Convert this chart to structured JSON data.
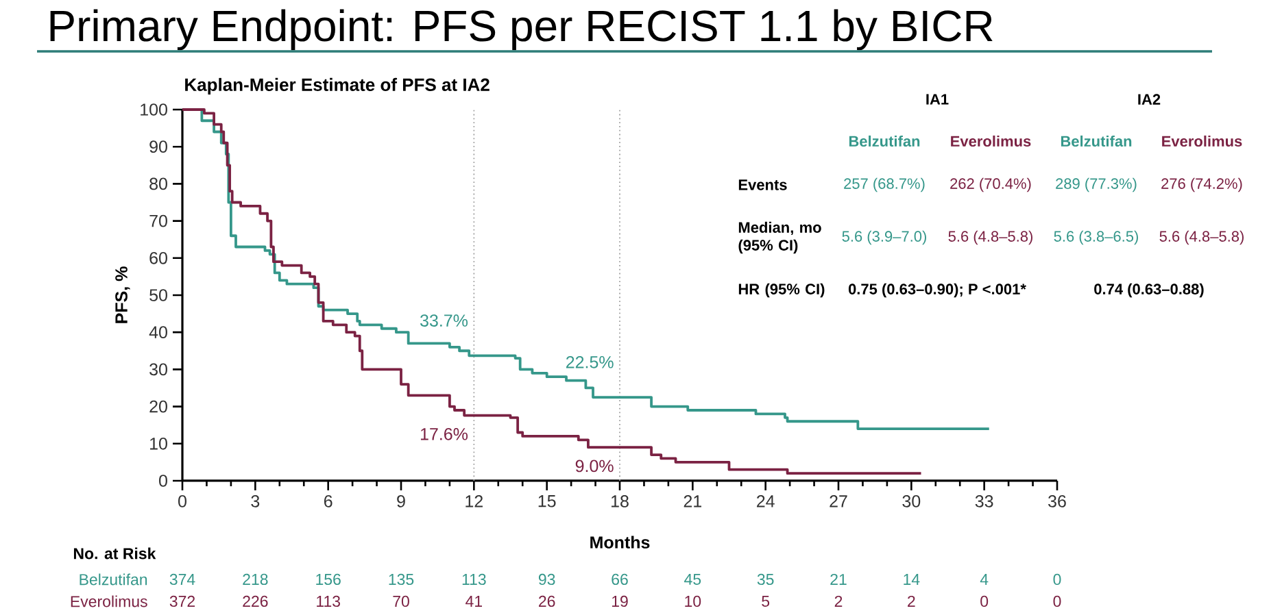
{
  "chart_data": {
    "type": "step",
    "title": "Primary Endpoint: PFS per RECIST 1.1 by BICR",
    "subtitle": "Kaplan-Meier Estimate of PFS at IA2",
    "xlabel": "Months",
    "ylabel": "PFS, %",
    "xlim": [
      0,
      36
    ],
    "ylim": [
      0,
      100
    ],
    "xticks": [
      0,
      {
        "value": 1,
        "label": null
      },
      {
        "value": 2,
        "label": null
      },
      3,
      {
        "value": 4,
        "label": null
      },
      {
        "value": 5,
        "label": null
      },
      6,
      {
        "value": 7,
        "label": null
      },
      {
        "value": 8,
        "label": null
      },
      9,
      {
        "value": 10,
        "label": null
      },
      {
        "value": 11,
        "label": null
      },
      12,
      {
        "value": 13,
        "label": null
      },
      {
        "value": 14,
        "label": null
      },
      15,
      {
        "value": 16,
        "label": null
      },
      {
        "value": 17,
        "label": null
      },
      18,
      {
        "value": 19,
        "label": null
      },
      {
        "value": 20,
        "label": null
      },
      21,
      {
        "value": 22,
        "label": null
      },
      {
        "value": 23,
        "label": null
      },
      24,
      {
        "value": 25,
        "label": null
      },
      {
        "value": 26,
        "label": null
      },
      27,
      {
        "value": 28,
        "label": null
      },
      {
        "value": 29,
        "label": null
      },
      30,
      {
        "value": 31,
        "label": null
      },
      {
        "value": 32,
        "label": null
      },
      33,
      {
        "value": 34,
        "label": null
      },
      {
        "value": 35,
        "label": null
      },
      36
    ],
    "yticks": [
      0,
      10,
      20,
      30,
      40,
      50,
      60,
      70,
      80,
      90,
      100
    ],
    "series": [
      {
        "name": "Belzutifan",
        "color": "#35978a",
        "x": [
          0,
          0.8,
          1.3,
          1.6,
          1.8,
          1.9,
          2.0,
          2.2,
          3.4,
          3.6,
          3.8,
          4.0,
          4.3,
          5.4,
          5.6,
          5.8,
          6.8,
          7.2,
          7.3,
          8.2,
          8.8,
          9.3,
          11.0,
          11.4,
          11.8,
          12,
          13.7,
          13.9,
          14.4,
          15.0,
          15.8,
          16.6,
          16.9,
          18,
          19.3,
          20.8,
          23.6,
          24.8,
          24.9,
          27.8,
          33.2
        ],
        "values": [
          100,
          97,
          94,
          91,
          88,
          75,
          66,
          63,
          62,
          61,
          56,
          54,
          53,
          52,
          47,
          46,
          45,
          43,
          42,
          41,
          40,
          37,
          36,
          35,
          33.7,
          33.7,
          33,
          30,
          29,
          28,
          27,
          25,
          22.5,
          22.5,
          20,
          19,
          18,
          17,
          16,
          14,
          14
        ],
        "value_labels": [
          null,
          null,
          null,
          null,
          null,
          null,
          null,
          null,
          null,
          null,
          null,
          null,
          null,
          null,
          null,
          null,
          null,
          null,
          null,
          null,
          null,
          null,
          null,
          null,
          null,
          "33.7%",
          null,
          null,
          null,
          null,
          null,
          null,
          null,
          "22.5%",
          null,
          null,
          null,
          null,
          null,
          null,
          null
        ]
      },
      {
        "name": "Everolimus",
        "color": "#7b2243",
        "x": [
          0,
          0.9,
          1.3,
          1.6,
          1.7,
          1.85,
          1.95,
          2.05,
          2.4,
          3.2,
          3.5,
          3.65,
          3.75,
          4.1,
          4.9,
          5.25,
          5.45,
          5.6,
          5.8,
          6.2,
          6.75,
          7.1,
          7.3,
          7.4,
          9.0,
          9.3,
          11.0,
          11.2,
          11.6,
          12,
          13.5,
          13.8,
          14.0,
          16.3,
          16.7,
          18,
          19.3,
          19.7,
          20.3,
          22.5,
          24.9,
          30.4
        ],
        "values": [
          100,
          99,
          96,
          94,
          91,
          85,
          78,
          75,
          74,
          72,
          70,
          63,
          59,
          58,
          56,
          55,
          53,
          48,
          43,
          42,
          40,
          39,
          35,
          30,
          26,
          23,
          20,
          19,
          17.6,
          17.6,
          17,
          13,
          12,
          11,
          9.0,
          9.0,
          7,
          6,
          5,
          3,
          2,
          2
        ],
        "value_labels": [
          null,
          null,
          null,
          null,
          null,
          null,
          null,
          null,
          null,
          null,
          null,
          null,
          null,
          null,
          null,
          null,
          null,
          null,
          null,
          null,
          null,
          null,
          null,
          null,
          null,
          null,
          null,
          null,
          null,
          "17.6%",
          null,
          null,
          null,
          null,
          null,
          "9.0%",
          null,
          null,
          null,
          null,
          null,
          null
        ]
      }
    ],
    "ref_lines": [
      {
        "axis": "x",
        "value": 12,
        "color": "#a0a0a0",
        "line_style": "dotted"
      },
      {
        "axis": "x",
        "value": 18,
        "color": "#a0a0a0",
        "line_style": "dotted"
      }
    ],
    "annotations": [
      "IA1",
      "IA2",
      "Belzutifan",
      "Everolimus",
      "Belzutifan",
      "Everolimus",
      "Events",
      "257 (68.7%)",
      "262 (70.4%)",
      "289 (77.3%)",
      "276 (74.2%)",
      "Median, mo (95% CI)",
      "5.6 (3.9–7.0)",
      "5.6 (4.8–5.8)",
      "5.6 (3.8–6.5)",
      "5.6 (4.8–5.8)",
      "HR (95% CI)",
      "0.75 (0.63–0.90); P <.001*",
      "0.74 (0.63–0.88)",
      "No. at Risk",
      "374",
      "218",
      "156",
      "135",
      "113",
      "93",
      "66",
      "45",
      "35",
      "21",
      "14",
      "4",
      "0",
      "372",
      "226",
      "113",
      "70",
      "41",
      "26",
      "19",
      "10",
      "5",
      "2",
      "2",
      "0",
      "0"
    ]
  }
}
